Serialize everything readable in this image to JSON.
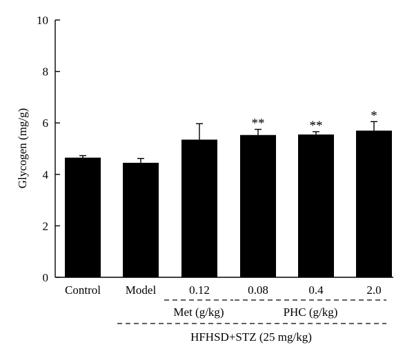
{
  "chart_data": {
    "type": "bar",
    "categories": [
      "Control",
      "Model",
      "0.12",
      "0.08",
      "0.4",
      "2.0"
    ],
    "values": [
      4.65,
      4.45,
      5.35,
      5.53,
      5.55,
      5.7
    ],
    "errors": [
      0.08,
      0.17,
      0.62,
      0.22,
      0.11,
      0.35
    ],
    "significance": [
      "",
      "",
      "",
      "**",
      "**",
      "*"
    ],
    "ylabel": "Glycogen (mg/g)",
    "xlabel": "",
    "ylim": [
      0,
      10
    ],
    "yticks": [
      0,
      2,
      4,
      6,
      8,
      10
    ],
    "bar_color": "#000000",
    "group_labels": {
      "met": "Met (g/kg)",
      "phc": "PHC (g/kg)",
      "hfhsd": "HFHSD+STZ (25 mg/kg)"
    }
  }
}
